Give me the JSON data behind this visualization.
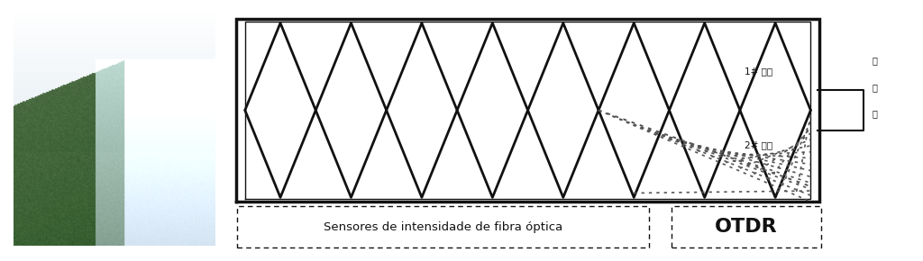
{
  "fig_width": 10.24,
  "fig_height": 2.9,
  "bg_color": "#ffffff",
  "n_triangles": 8,
  "label_1": "1# 光路",
  "label_2": "2# 光路",
  "label_side_chars": [
    "监",
    "测",
    "筱"
  ],
  "label_sensors": "Sensores de intensidade de fibra óptica",
  "label_otdr": "OTDR",
  "line_color": "#111111",
  "dotted_color": "#555555",
  "photo_region": [
    0.015,
    0.06,
    0.218,
    0.9
  ],
  "diagram_region": [
    0.245,
    0.025,
    0.715,
    0.945
  ]
}
